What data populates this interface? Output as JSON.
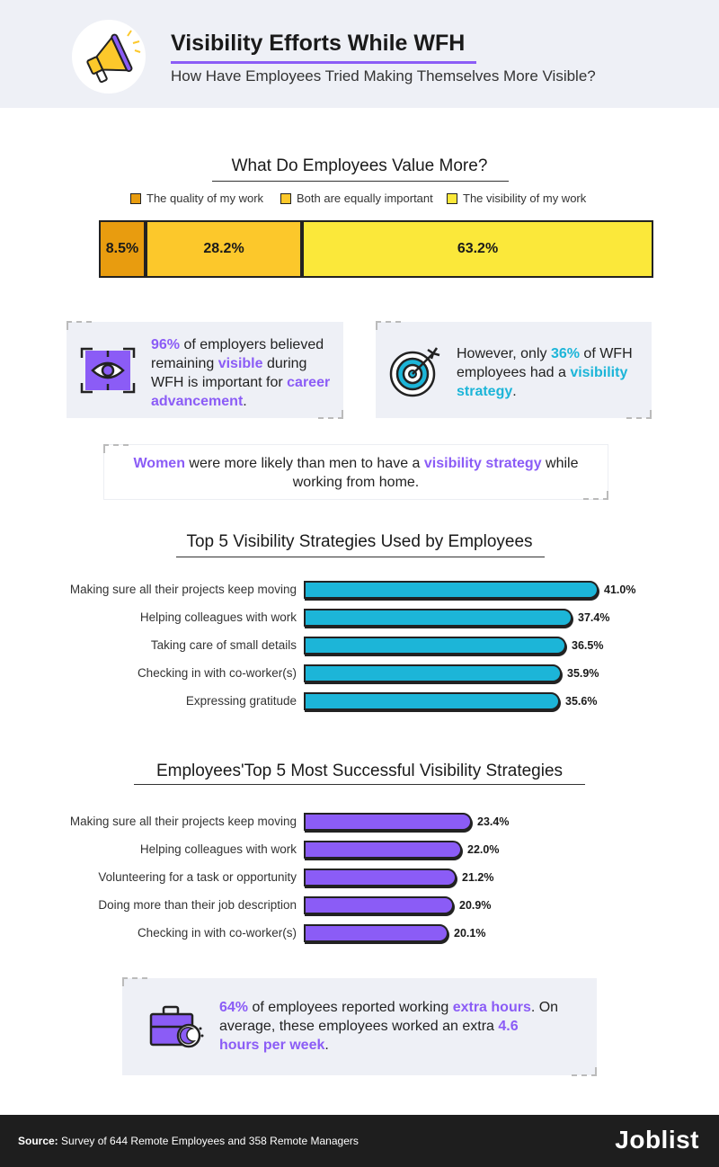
{
  "header": {
    "title": "Visibility Efforts While WFH",
    "subtitle": "How Have Employees Tried Making Themselves More Visible?"
  },
  "colors": {
    "quality": "#e89c0f",
    "equal": "#fcc82b",
    "visibility": "#fbe83a",
    "purple": "#8b5cf6",
    "blue": "#1cb5d8"
  },
  "value_section": {
    "title": "What Do Employees Value More?",
    "legend": [
      "The quality of my work",
      "Both are equally important",
      "The visibility of my work"
    ]
  },
  "cards": {
    "employers": {
      "pct": "96%",
      "t1": " of employers believed remaining ",
      "hl1": "visible",
      "t2": " during WFH is important for ",
      "hl2": "career advancement",
      "t3": "."
    },
    "strategy": {
      "t1": "However, only ",
      "pct": "36%",
      "t2": " of WFH employees had a ",
      "hl": "visibility strategy",
      "t3": "."
    },
    "women": {
      "hl1": "Women",
      "t1": " were more likely than men to have a ",
      "hl2": "visibility strategy",
      "t2": " while working from home."
    },
    "hours": {
      "pct": "64%",
      "t1": " of employees reported working ",
      "hl1": "extra hours",
      "t2": ". On average, these employees worked an extra ",
      "hl2": "4.6 hours per week",
      "t3": "."
    }
  },
  "chart_data": [
    {
      "type": "bar",
      "stacked": true,
      "title": "What Do Employees Value More?",
      "categories": [
        "The quality of my work",
        "Both are equally important",
        "The visibility of my work"
      ],
      "values": [
        8.5,
        28.2,
        63.2
      ],
      "labels": [
        "8.5%",
        "28.2%",
        "63.2%"
      ]
    },
    {
      "type": "bar",
      "orientation": "horizontal",
      "title": "Top 5 Visibility Strategies Used by Employees",
      "categories": [
        "Making sure all their projects keep moving",
        "Helping colleagues with work",
        "Taking care of small details",
        "Checking in with co-worker(s)",
        "Expressing gratitude"
      ],
      "values": [
        41.0,
        37.4,
        36.5,
        35.9,
        35.6
      ],
      "labels": [
        "41.0%",
        "37.4%",
        "36.5%",
        "35.9%",
        "35.6%"
      ]
    },
    {
      "type": "bar",
      "orientation": "horizontal",
      "title": "Employees'Top 5 Most Successful Visibility Strategies",
      "categories": [
        "Making sure all their projects keep moving",
        "Helping colleagues with work",
        "Volunteering for a task or opportunity",
        "Doing more than their job description",
        "Checking in with co-worker(s)"
      ],
      "values": [
        23.4,
        22.0,
        21.2,
        20.9,
        20.1
      ],
      "labels": [
        "23.4%",
        "22.0%",
        "21.2%",
        "20.9%",
        "20.1%"
      ]
    }
  ],
  "footer": {
    "source_label": "Source:",
    "source_text": " Survey of 644 Remote Employees and 358 Remote Managers",
    "brand": "Joblist"
  }
}
